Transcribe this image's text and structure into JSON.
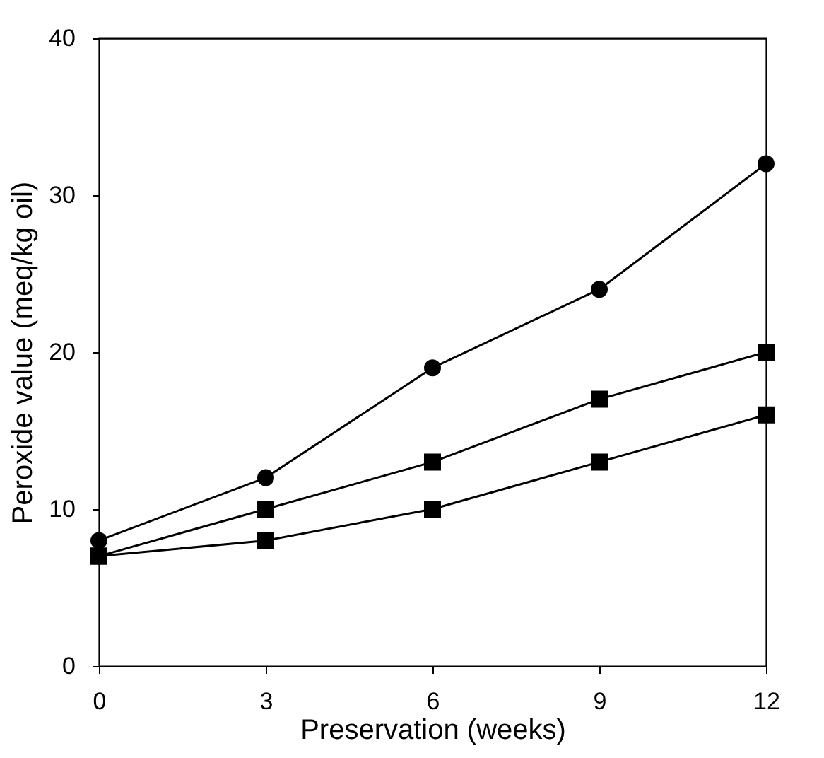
{
  "chart_data": {
    "type": "line",
    "xlabel": "Preservation (weeks)",
    "ylabel": "Peroxide value (meq/kg oil)",
    "x": [
      0,
      3,
      6,
      9,
      12
    ],
    "series": [
      {
        "color": "#000000",
        "marker": "circle",
        "values": [
          8,
          12,
          19,
          24,
          32
        ]
      },
      {
        "color": "#000000",
        "marker": "square",
        "values": [
          7,
          10,
          13,
          17,
          20
        ]
      },
      {
        "color": "#000000",
        "marker": "square",
        "values": [
          7,
          8,
          10,
          13,
          16
        ]
      }
    ],
    "xlim": [
      0,
      12
    ],
    "xticks": [
      0,
      3,
      6,
      9,
      12
    ],
    "ylim": [
      0,
      40
    ],
    "yticks": [
      0,
      10,
      20,
      30,
      40
    ],
    "grid": false,
    "line_style": "solid"
  }
}
